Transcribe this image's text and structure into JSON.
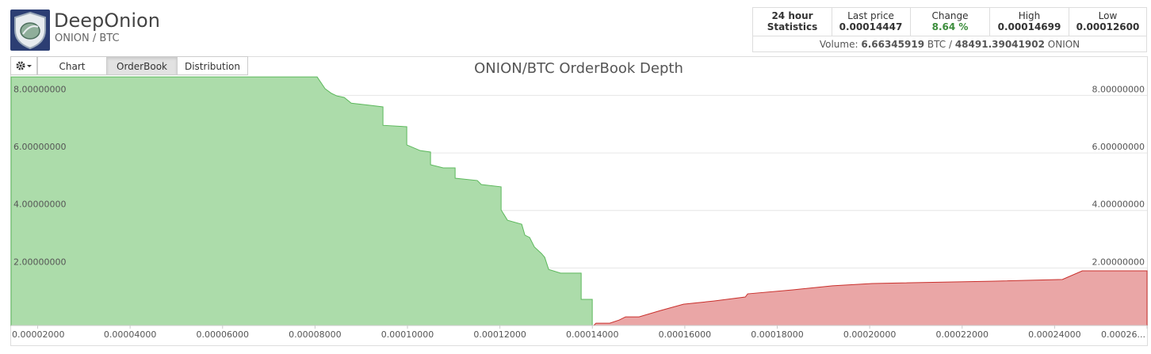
{
  "header": {
    "title": "DeepOnion",
    "pair": "ONION / BTC"
  },
  "stats": {
    "heading": [
      "24 hour",
      "Statistics"
    ],
    "items": [
      {
        "label": "Last price",
        "value": "0.00014447"
      },
      {
        "label": "Change",
        "value": "8.64 %"
      },
      {
        "label": "High",
        "value": "0.00014699"
      },
      {
        "label": "Low",
        "value": "0.00012600"
      }
    ],
    "volume": {
      "label": "Volume:",
      "btc": "6.66345919",
      "btc_unit": "BTC /",
      "onion": "48491.39041902",
      "onion_unit": "ONION"
    }
  },
  "tabs": [
    "Chart",
    "OrderBook",
    "Distribution"
  ],
  "active_tab": 1,
  "chart_data": {
    "type": "area",
    "title": "ONION/BTC OrderBook Depth",
    "xlim": [
      1.425e-05,
      0.00026
    ],
    "ylim": [
      0,
      8.7
    ],
    "grid": true,
    "xticks": [
      {
        "value": 2e-05,
        "label": "0.00002000"
      },
      {
        "value": 4e-05,
        "label": "0.00004000"
      },
      {
        "value": 6e-05,
        "label": "0.00006000"
      },
      {
        "value": 8e-05,
        "label": "0.00008000"
      },
      {
        "value": 0.0001,
        "label": "0.00010000"
      },
      {
        "value": 0.00012,
        "label": "0.00012000"
      },
      {
        "value": 0.00014,
        "label": "0.00014000"
      },
      {
        "value": 0.00016,
        "label": "0.00016000"
      },
      {
        "value": 0.00018,
        "label": "0.00018000"
      },
      {
        "value": 0.0002,
        "label": "0.00020000"
      },
      {
        "value": 0.00022,
        "label": "0.00022000"
      },
      {
        "value": 0.00024,
        "label": "0.00024000"
      },
      {
        "value": 0.00026,
        "label": "0.00026..."
      }
    ],
    "yticks": [
      {
        "value": 2,
        "label": "2.00000000"
      },
      {
        "value": 4,
        "label": "4.00000000"
      },
      {
        "value": 6,
        "label": "6.00000000"
      },
      {
        "value": 8,
        "label": "8.00000000"
      }
    ],
    "series": [
      {
        "color": "#5cb85c",
        "fill": "#acdcaa",
        "x": [
          1.425e-05,
          8.046e-05,
          8.218e-05,
          8.355e-05,
          8.475e-05,
          8.63e-05,
          8.784e-05,
          9.213e-05,
          9.47e-05,
          9.47e-05,
          9.985e-05,
          9.985e-05,
          0.00010276,
          0.00010499,
          0.00010499,
          0.00010774,
          0.00011031,
          0.00011031,
          0.00011511,
          0.00011597,
          0.00012026,
          0.00012026,
          0.00012163,
          0.00012472,
          0.0001254,
          0.00012643,
          0.00012746,
          0.00012901,
          0.00012969,
          0.00013055,
          0.00013312,
          0.00013758,
          0.00013758,
          0.00013998,
          0.00013998
        ],
        "values": [
          8.64,
          8.64,
          8.23,
          8.07,
          7.98,
          7.93,
          7.73,
          7.65,
          7.6,
          6.96,
          6.91,
          6.28,
          6.08,
          6.03,
          5.59,
          5.48,
          5.48,
          5.12,
          5.04,
          4.9,
          4.82,
          4.02,
          3.66,
          3.52,
          3.14,
          3.06,
          2.73,
          2.5,
          2.37,
          1.95,
          1.82,
          1.82,
          0.91,
          0.91,
          0
        ]
      },
      {
        "color": "#c9302c",
        "fill": "#eaa6a6",
        "x": [
          0.00014028,
          0.00014079,
          0.00014376,
          0.00014582,
          0.00014719,
          0.0001501,
          0.00015474,
          0.00015971,
          0.00016623,
          0.00017309,
          0.0001736,
          0.00018338,
          0.00019196,
          0.00020054,
          0.00022627,
          0.0002417,
          0.00024599,
          0.00026
        ],
        "values": [
          0,
          0.08,
          0.08,
          0.19,
          0.3,
          0.3,
          0.52,
          0.74,
          0.85,
          0.99,
          1.1,
          1.24,
          1.38,
          1.46,
          1.54,
          1.6,
          1.9,
          1.9
        ]
      }
    ]
  }
}
